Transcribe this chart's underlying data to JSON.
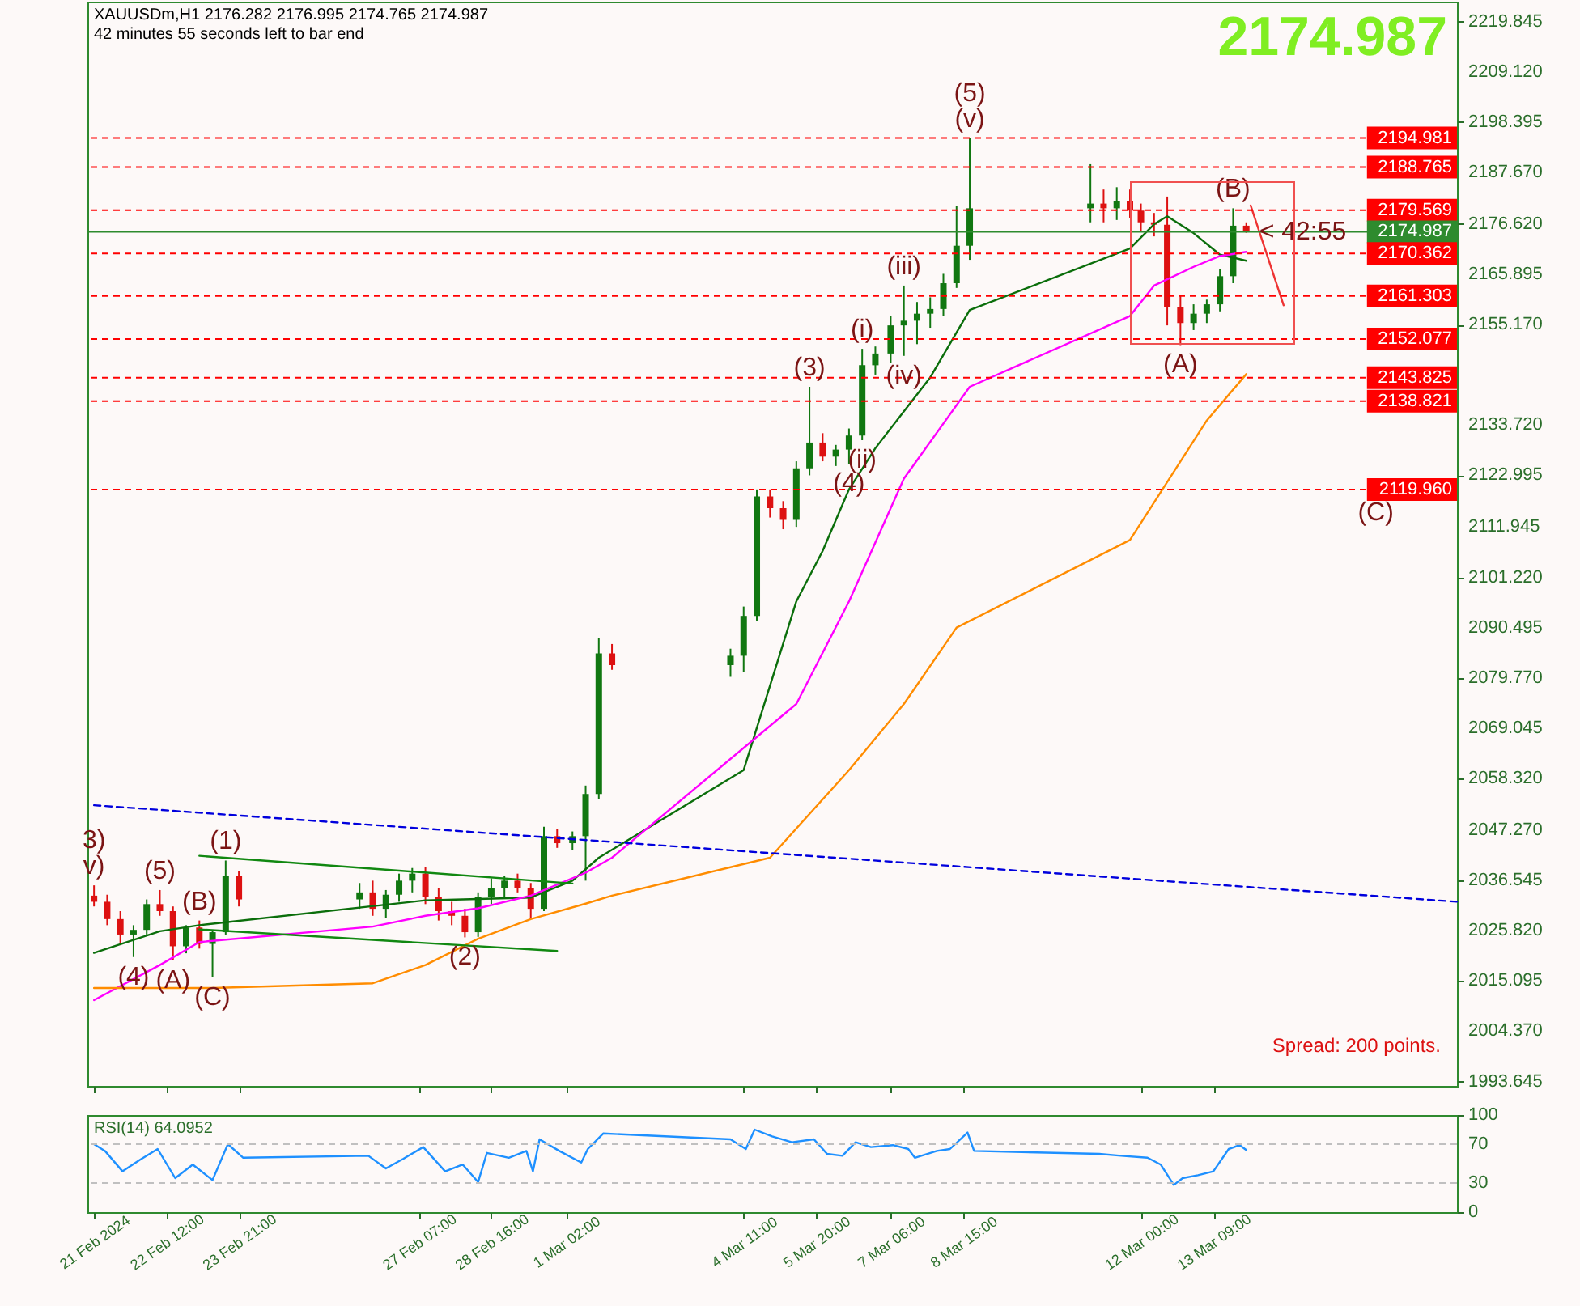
{
  "chart_data": [
    {
      "type": "candlestick",
      "title": "XAUUSDm,H1 2176.282 2176.995 2174.765 2174.987",
      "subtitle": "42 minutes 55 seconds left to bar end",
      "x": [
        "2024-02-21T03:00",
        "2024-02-21T09:00",
        "2024-02-21T15:00",
        "2024-02-21T21:00",
        "2024-02-22T03:00",
        "2024-02-22T09:00",
        "2024-02-22T15:00",
        "2024-02-22T21:00",
        "2024-02-23T03:00",
        "2024-02-23T09:00",
        "2024-02-23T15:00",
        "2024-02-23T21:00",
        "2024-02-26T04:00",
        "2024-02-26T10:00",
        "2024-02-26T16:00",
        "2024-02-26T22:00",
        "2024-02-27T04:00",
        "2024-02-27T10:00",
        "2024-02-27T16:00",
        "2024-02-27T22:00",
        "2024-02-28T04:00",
        "2024-02-28T10:00",
        "2024-02-28T16:00",
        "2024-02-28T22:00",
        "2024-02-29T04:00",
        "2024-02-29T10:00",
        "2024-02-29T16:00",
        "2024-02-29T22:00",
        "2024-03-01T05:00",
        "2024-03-01T11:00",
        "2024-03-01T17:00",
        "2024-03-01T23:00",
        "2024-03-04T05:00",
        "2024-03-04T11:00",
        "2024-03-04T17:00",
        "2024-03-04T23:00",
        "2024-03-05T05:00",
        "2024-03-05T11:00",
        "2024-03-05T17:00",
        "2024-03-05T23:00",
        "2024-03-06T05:00",
        "2024-03-06T11:00",
        "2024-03-06T17:00",
        "2024-03-06T23:00",
        "2024-03-07T06:00",
        "2024-03-07T12:00",
        "2024-03-07T18:00",
        "2024-03-08T00:00",
        "2024-03-08T06:00",
        "2024-03-08T12:00",
        "2024-03-08T18:00",
        "2024-03-11T01:00",
        "2024-03-11T07:00",
        "2024-03-11T13:00",
        "2024-03-11T19:00",
        "2024-03-12T00:00",
        "2024-03-12T06:00",
        "2024-03-12T12:00",
        "2024-03-12T18:00",
        "2024-03-13T00:00",
        "2024-03-13T06:00",
        "2024-03-13T12:00",
        "2024-03-13T18:00",
        "2024-03-14T00:00"
      ],
      "ohlc": [
        [
          2033.3,
          2035.5,
          2031.0,
          2032.0
        ],
        [
          2032.0,
          2033.5,
          2027.0,
          2028.3
        ],
        [
          2028.3,
          2030.0,
          2023.0,
          2025.0
        ],
        [
          2025.0,
          2027.0,
          2020.2,
          2026.0
        ],
        [
          2026.0,
          2032.5,
          2025.0,
          2031.5
        ],
        [
          2031.5,
          2034.5,
          2029.0,
          2030.0
        ],
        [
          2030.0,
          2031.0,
          2019.5,
          2022.5
        ],
        [
          2022.5,
          2027.0,
          2021.0,
          2026.5
        ],
        [
          2026.5,
          2028.0,
          2022.0,
          2023.0
        ],
        [
          2023.0,
          2026.0,
          2015.9,
          2025.5
        ],
        [
          2025.5,
          2040.8,
          2025.0,
          2037.5
        ],
        [
          2037.5,
          2038.5,
          2031.0,
          2032.5
        ],
        [
          2032.5,
          2036.0,
          2030.5,
          2034.0
        ],
        [
          2034.0,
          2036.5,
          2029.0,
          2030.5
        ],
        [
          2030.5,
          2034.5,
          2028.5,
          2033.5
        ],
        [
          2033.5,
          2038.0,
          2032.0,
          2036.5
        ],
        [
          2036.5,
          2039.2,
          2034.0,
          2038.0
        ],
        [
          2038.0,
          2039.5,
          2031.5,
          2033.0
        ],
        [
          2033.0,
          2035.0,
          2028.0,
          2030.0
        ],
        [
          2030.0,
          2032.0,
          2027.0,
          2029.0
        ],
        [
          2029.0,
          2030.5,
          2024.4,
          2025.5
        ],
        [
          2025.5,
          2034.0,
          2024.5,
          2033.0
        ],
        [
          2033.0,
          2037.0,
          2031.5,
          2035.0
        ],
        [
          2035.0,
          2037.5,
          2033.0,
          2036.5
        ],
        [
          2036.5,
          2038.0,
          2034.0,
          2035.0
        ],
        [
          2035.0,
          2036.0,
          2028.3,
          2030.5
        ],
        [
          2030.5,
          2048.0,
          2030.0,
          2046.0
        ],
        [
          2046.0,
          2047.5,
          2043.5,
          2044.5
        ],
        [
          2044.5,
          2047.0,
          2043.0,
          2046.0
        ],
        [
          2046.0,
          2056.8,
          2036.5,
          2055.0
        ],
        [
          2055.0,
          2088.2,
          2054.0,
          2085.0
        ],
        [
          2085.0,
          2087.0,
          2081.5,
          2082.5
        ],
        [
          2082.5,
          2086.0,
          2080.0,
          2084.5
        ],
        [
          2084.5,
          2095.0,
          2081.0,
          2093.0
        ],
        [
          2093.0,
          2120.0,
          2092.0,
          2118.5
        ],
        [
          2118.5,
          2120.0,
          2114.0,
          2116.0
        ],
        [
          2116.0,
          2117.5,
          2111.5,
          2113.5
        ],
        [
          2113.5,
          2126.0,
          2112.0,
          2124.5
        ],
        [
          2124.5,
          2141.9,
          2123.0,
          2130.0
        ],
        [
          2130.0,
          2132.0,
          2126.0,
          2127.0
        ],
        [
          2127.0,
          2129.5,
          2125.0,
          2128.5
        ],
        [
          2128.5,
          2133.0,
          2125.5,
          2131.5
        ],
        [
          2131.5,
          2150.0,
          2130.5,
          2146.5
        ],
        [
          2146.5,
          2150.5,
          2144.5,
          2149.0
        ],
        [
          2149.0,
          2157.0,
          2147.0,
          2155.0
        ],
        [
          2155.0,
          2163.5,
          2148.5,
          2156.0
        ],
        [
          2156.0,
          2160.0,
          2151.0,
          2157.5
        ],
        [
          2157.5,
          2161.0,
          2154.5,
          2158.5
        ],
        [
          2158.5,
          2166.0,
          2157.0,
          2164.0
        ],
        [
          2164.0,
          2180.5,
          2163.0,
          2172.0
        ],
        [
          2172.0,
          2195.0,
          2169.0,
          2180.0
        ],
        [
          2180.0,
          2189.4,
          2177.0,
          2181.0
        ],
        [
          2181.0,
          2184.0,
          2177.0,
          2180.0
        ],
        [
          2180.0,
          2184.5,
          2177.5,
          2181.5
        ],
        [
          2181.5,
          2184.0,
          2178.0,
          2179.5
        ],
        [
          2179.5,
          2181.0,
          2175.0,
          2177.0
        ],
        [
          2177.0,
          2179.0,
          2174.0,
          2176.5
        ],
        [
          2176.5,
          2182.5,
          2155.0,
          2159.0
        ],
        [
          2159.0,
          2161.5,
          2150.8,
          2155.5
        ],
        [
          2155.5,
          2159.5,
          2154.0,
          2157.5
        ],
        [
          2157.5,
          2160.5,
          2155.5,
          2159.5
        ],
        [
          2159.5,
          2167.0,
          2158.0,
          2165.5
        ],
        [
          2165.5,
          2180.0,
          2164.0,
          2176.282
        ],
        [
          2176.282,
          2176.995,
          2174.765,
          2174.987
        ]
      ],
      "colors": [
        "#dd1111",
        "#dd1111",
        "#dd1111",
        "#117711",
        "#117711",
        "#dd1111",
        "#dd1111",
        "#117711",
        "#dd1111",
        "#117711",
        "#117711",
        "#dd1111",
        "#117711",
        "#dd1111",
        "#117711",
        "#117711",
        "#117711",
        "#dd1111",
        "#dd1111",
        "#dd1111",
        "#dd1111",
        "#117711",
        "#117711",
        "#117711",
        "#dd1111",
        "#dd1111",
        "#117711",
        "#dd1111",
        "#117711",
        "#117711",
        "#117711",
        "#dd1111",
        "#117711",
        "#117711",
        "#117711",
        "#dd1111",
        "#dd1111",
        "#117711",
        "#117711",
        "#dd1111",
        "#117711",
        "#117711",
        "#117711",
        "#117711",
        "#117711",
        "#117711",
        "#117711",
        "#117711",
        "#117711",
        "#117711",
        "#117711",
        "#117711",
        "#dd1111",
        "#117711",
        "#dd1111",
        "#dd1111",
        "#dd1111",
        "#dd1111",
        "#dd1111",
        "#117711",
        "#117711",
        "#117711",
        "#117711",
        "#dd1111"
      ],
      "series": [
        {
          "type": "line",
          "color": "#0b6e0b",
          "x": [
            "2024-02-21T03:00",
            "2024-02-22T09:00",
            "2024-02-23T03:00",
            "2024-02-27T10:00",
            "2024-02-29T10:00",
            "2024-03-01T05:00",
            "2024-03-01T17:00",
            "2024-03-04T11:00",
            "2024-03-05T11:00",
            "2024-03-05T23:00",
            "2024-03-06T11:00",
            "2024-03-06T23:00",
            "2024-03-08T00:00",
            "2024-03-08T18:00",
            "2024-03-11T19:00",
            "2024-03-12T06:00",
            "2024-03-12T12:00",
            "2024-03-13T00:00",
            "2024-03-13T12:00",
            "2024-03-14T00:00"
          ],
          "values": [
            2021.1,
            2025.7,
            2027.0,
            2032.3,
            2032.9,
            2036.5,
            2041.4,
            2060.1,
            2096.1,
            2106.9,
            2120.0,
            2128.8,
            2143.9,
            2158.3,
            2171.4,
            2176.6,
            2178.3,
            2174.7,
            2170.1,
            2168.8
          ]
        },
        {
          "type": "line",
          "color": "#ff00ff",
          "x": [
            "2024-02-21T03:00",
            "2024-02-22T09:00",
            "2024-02-23T03:00",
            "2024-02-26T10:00",
            "2024-02-27T10:00",
            "2024-02-28T10:00",
            "2024-02-29T10:00",
            "2024-03-01T11:00",
            "2024-03-01T23:00",
            "2024-03-05T11:00",
            "2024-03-06T11:00",
            "2024-03-07T12:00",
            "2024-03-08T18:00",
            "2024-03-11T19:00",
            "2024-03-12T06:00",
            "2024-03-13T00:00",
            "2024-03-13T12:00",
            "2024-03-14T00:00"
          ],
          "values": [
            2011.0,
            2018.5,
            2023.4,
            2026.7,
            2029.0,
            2030.6,
            2033.3,
            2038.2,
            2041.4,
            2074.2,
            2096.1,
            2122.3,
            2141.9,
            2157.0,
            2163.5,
            2167.5,
            2169.8,
            2170.7
          ]
        },
        {
          "type": "line",
          "color": "#ff8c00",
          "x": [
            "2024-02-21T03:00",
            "2024-02-23T09:00",
            "2024-02-26T10:00",
            "2024-02-27T10:00",
            "2024-02-28T10:00",
            "2024-02-29T10:00",
            "2024-03-01T11:00",
            "2024-03-01T23:00",
            "2024-03-04T23:00",
            "2024-03-06T11:00",
            "2024-03-07T12:00",
            "2024-03-08T12:00",
            "2024-03-11T19:00",
            "2024-03-13T06:00",
            "2024-03-14T00:00"
          ],
          "values": [
            2013.6,
            2013.6,
            2014.6,
            2018.5,
            2024.1,
            2028.3,
            2031.6,
            2033.3,
            2041.4,
            2060.1,
            2074.2,
            2090.5,
            2109.2,
            2134.7,
            2144.6
          ]
        },
        {
          "type": "line",
          "color": "#0000dd",
          "line_style": "dashed",
          "x": [
            "2024-02-21T03:00",
            "2024-03-18T00:00"
          ],
          "values": [
            2052.6,
            2032.0
          ]
        },
        {
          "type": "line",
          "color": "#118811",
          "x": [
            "2024-02-23T03:00",
            "2024-03-01T05:00"
          ],
          "values": [
            2041.8,
            2035.9
          ]
        },
        {
          "type": "line",
          "color": "#118811",
          "x": [
            "2024-02-23T03:00",
            "2024-02-29T22:00"
          ],
          "values": [
            2026.1,
            2021.5
          ]
        },
        {
          "type": "line",
          "color": "#ee3333",
          "x": [
            "2024-03-14T02:00",
            "2024-03-14T17:00"
          ],
          "values": [
            2180.6,
            2159.3
          ]
        }
      ],
      "ref_lines": [
        {
          "axis": "y",
          "value": 2194.981,
          "label": "2194.981",
          "color": "#ff0000",
          "line_style": "dashed"
        },
        {
          "axis": "y",
          "value": 2188.765,
          "label": "2188.765",
          "color": "#ff0000",
          "line_style": "dashed"
        },
        {
          "axis": "y",
          "value": 2179.569,
          "label": "2179.569",
          "color": "#ff0000",
          "line_style": "dashed"
        },
        {
          "axis": "y",
          "value": 2174.987,
          "label": "2174.987",
          "color": "#2e8b2e",
          "line_style": "solid"
        },
        {
          "axis": "y",
          "value": 2170.362,
          "label": "2170.362",
          "color": "#ff0000",
          "line_style": "dashed"
        },
        {
          "axis": "y",
          "value": 2161.303,
          "label": "2161.303",
          "color": "#ff0000",
          "line_style": "dashed"
        },
        {
          "axis": "y",
          "value": 2152.077,
          "label": "2152.077",
          "color": "#ff0000",
          "line_style": "dashed"
        },
        {
          "axis": "y",
          "value": 2143.825,
          "label": "2143.825",
          "color": "#ff0000",
          "line_style": "dashed"
        },
        {
          "axis": "y",
          "value": 2138.821,
          "label": "2138.821",
          "color": "#ff0000",
          "line_style": "dashed"
        },
        {
          "axis": "y",
          "value": 2119.96,
          "label": "2119.960",
          "color": "#ff0000",
          "line_style": "dashed"
        }
      ],
      "annotations": [
        "2174.987",
        {
          "text": "v)",
          "x": "2024-02-21T03:00",
          "y": 2035.5
        },
        {
          "text": "3)",
          "x": "2024-02-21T03:00",
          "y": 2035.5
        },
        {
          "text": "(5)",
          "x": "2024-02-22T09:00",
          "y": 2034.5
        },
        {
          "text": "(4)",
          "x": "2024-02-21T21:00",
          "y": 2020.2
        },
        {
          "text": "(B)",
          "x": "2024-02-23T03:00",
          "y": 2028.0
        },
        {
          "text": "(A)",
          "x": "2024-02-22T15:00",
          "y": 2019.5
        },
        {
          "text": "(C)",
          "x": "2024-02-23T09:00",
          "y": 2015.9
        },
        {
          "text": "(1)",
          "x": "2024-02-23T15:00",
          "y": 2040.8
        },
        {
          "text": "(2)",
          "x": "2024-02-28T04:00",
          "y": 2024.4
        },
        {
          "text": "(3)",
          "x": "2024-03-05T17:00",
          "y": 2141.9
        },
        {
          "text": "(4)",
          "x": "2024-03-06T11:00",
          "y": 2125.5
        },
        {
          "text": "(i)",
          "x": "2024-03-06T17:00",
          "y": 2150.0
        },
        {
          "text": "(ii)",
          "x": "2024-03-06T17:00",
          "y": 2130.5
        },
        {
          "text": "(iii)",
          "x": "2024-03-07T12:00",
          "y": 2163.5
        },
        {
          "text": "(iv)",
          "x": "2024-03-07T12:00",
          "y": 2148.5
        },
        {
          "text": "(v)",
          "x": "2024-03-08T18:00",
          "y": 2195.0
        },
        {
          "text": "(5)",
          "x": "2024-03-08T18:00",
          "y": 2195.0
        },
        {
          "text": "(A)",
          "x": "2024-03-12T18:00",
          "y": 2150.8
        },
        {
          "text": "(B)",
          "x": "2024-03-13T18:00",
          "y": 2180.0
        },
        {
          "text": "(C)",
          "x": "2024-03-16T11:00",
          "y": 2119.96
        },
        {
          "text": "< 42:55",
          "x": "2024-03-14T00:00",
          "y": 2174.987
        },
        "Spread: 200 points."
      ],
      "xlim": [
        "2024-02-21T00:00",
        "2024-03-18T00:00"
      ],
      "ylim": [
        1992.7,
        2224.1
      ],
      "xticks": [
        {
          "value": "2024-02-21T03:00",
          "label": null
        },
        {
          "value": "2024-02-22T12:00",
          "label": null
        },
        {
          "value": "2024-02-23T21:00",
          "label": null
        },
        {
          "value": "2024-02-27T07:00",
          "label": null
        },
        {
          "value": "2024-02-28T16:00",
          "label": null
        },
        {
          "value": "2024-03-01T02:00",
          "label": null
        },
        {
          "value": "2024-03-04T11:00",
          "label": null
        },
        {
          "value": "2024-03-05T20:00",
          "label": null
        },
        {
          "value": "2024-03-07T06:00",
          "label": null
        },
        {
          "value": "2024-03-08T15:00",
          "label": null
        },
        {
          "value": "2024-03-12T00:00",
          "label": null
        },
        {
          "value": "2024-03-13T09:00",
          "label": null
        }
      ],
      "yticks": [
        2219.845,
        {
          "value": 2209.12,
          "label": "2209.120"
        },
        2198.395,
        {
          "value": 2187.67,
          "label": "2187.670"
        },
        {
          "value": 2176.62,
          "label": "2176.620"
        },
        2165.895,
        {
          "value": 2155.17,
          "label": "2155.170"
        },
        {
          "value": 2133.72,
          "label": "2133.720"
        },
        2122.995,
        2111.945,
        {
          "value": 2101.22,
          "label": "2101.220"
        },
        2090.495,
        {
          "value": 2079.77,
          "label": "2079.770"
        },
        2069.045,
        {
          "value": 2058.32,
          "label": "2058.320"
        },
        {
          "value": 2047.27,
          "label": "2047.270"
        },
        2036.545,
        {
          "value": 2025.82,
          "label": "2025.820"
        },
        2015.095,
        {
          "value": 2004.37,
          "label": "2004.370"
        },
        1993.645
      ],
      "tick_labels": "y"
    },
    {
      "type": "line",
      "title": "RSI(14) 64.0952",
      "x": [
        "2024-02-21T03:00",
        "2024-02-21T08:00",
        "2024-02-21T16:00",
        "2024-02-22T00:00",
        "2024-02-22T08:00",
        "2024-02-22T16:00",
        "2024-02-23T00:00",
        "2024-02-23T09:00",
        "2024-02-23T16:00",
        "2024-02-23T23:00",
        "2024-02-26T08:00",
        "2024-02-26T16:00",
        "2024-02-27T00:00",
        "2024-02-27T09:00",
        "2024-02-27T19:00",
        "2024-02-28T03:00",
        "2024-02-28T10:00",
        "2024-02-28T14:00",
        "2024-02-29T00:00",
        "2024-02-29T08:00",
        "2024-02-29T11:00",
        "2024-02-29T14:00",
        "2024-02-29T23:00",
        "2024-03-01T09:00",
        "2024-03-01T12:00",
        "2024-03-01T19:00",
        "2024-03-04T05:00",
        "2024-03-04T12:00",
        "2024-03-04T16:00",
        "2024-03-05T00:00",
        "2024-03-05T09:00",
        "2024-03-05T19:00",
        "2024-03-06T01:00",
        "2024-03-06T08:00",
        "2024-03-06T14:00",
        "2024-03-06T21:00",
        "2024-03-07T07:00",
        "2024-03-07T14:00",
        "2024-03-07T17:00",
        "2024-03-08T03:00",
        "2024-03-08T09:00",
        "2024-03-08T17:00",
        "2024-03-08T20:00",
        "2024-03-11T05:00",
        "2024-03-11T15:00",
        "2024-03-12T03:00",
        "2024-03-12T09:00",
        "2024-03-12T15:00",
        "2024-03-12T19:00",
        "2024-03-13T02:00",
        "2024-03-13T09:00",
        "2024-03-13T16:00",
        "2024-03-13T21:00",
        "2024-03-14T00:00"
      ],
      "series": [
        {
          "color": "#1e90ff",
          "values": [
            70,
            63,
            42,
            54,
            65,
            35,
            49,
            33,
            70,
            56,
            58,
            45,
            55,
            67,
            42,
            49,
            31,
            61,
            56,
            63,
            42,
            75,
            63,
            51,
            65,
            81,
            75,
            65,
            85,
            78,
            72,
            75,
            60,
            58,
            72,
            67,
            69,
            65,
            56,
            63,
            65,
            82,
            63,
            60,
            58,
            56,
            49,
            28,
            35,
            38,
            42,
            65,
            69,
            64
          ]
        }
      ],
      "ref_lines": [
        {
          "axis": "y",
          "value": 70,
          "color": "#c0c0c0",
          "line_style": "dashed"
        },
        {
          "axis": "y",
          "value": 30,
          "color": "#c0c0c0",
          "line_style": "dashed"
        }
      ],
      "xlim": [
        "2024-02-21T00:00",
        "2024-03-18T00:00"
      ],
      "ylim": [
        0,
        100
      ],
      "yticks": [
        100,
        70,
        30,
        0
      ],
      "xticks": [
        {
          "value": "2024-02-21T03:00",
          "label": "21 Feb 2024"
        },
        {
          "value": "2024-02-22T12:00",
          "label": "22 Feb 12:00"
        },
        {
          "value": "2024-02-23T21:00",
          "label": "23 Feb 21:00"
        },
        {
          "value": "2024-02-27T07:00",
          "label": "27 Feb 07:00"
        },
        {
          "value": "2024-02-28T16:00",
          "label": "28 Feb 16:00"
        },
        {
          "value": "2024-03-01T02:00",
          "label": "1 Mar 02:00"
        },
        {
          "value": "2024-03-04T11:00",
          "label": "4 Mar 11:00"
        },
        {
          "value": "2024-03-05T20:00",
          "label": "5 Mar 20:00"
        },
        {
          "value": "2024-03-07T06:00",
          "label": "7 Mar 06:00"
        },
        {
          "value": "2024-03-08T15:00",
          "label": "8 Mar 15:00"
        },
        {
          "value": "2024-03-12T00:00",
          "label": "12 Mar 00:00"
        },
        {
          "value": "2024-03-13T09:00",
          "label": "13 Mar 09:00"
        }
      ]
    }
  ]
}
